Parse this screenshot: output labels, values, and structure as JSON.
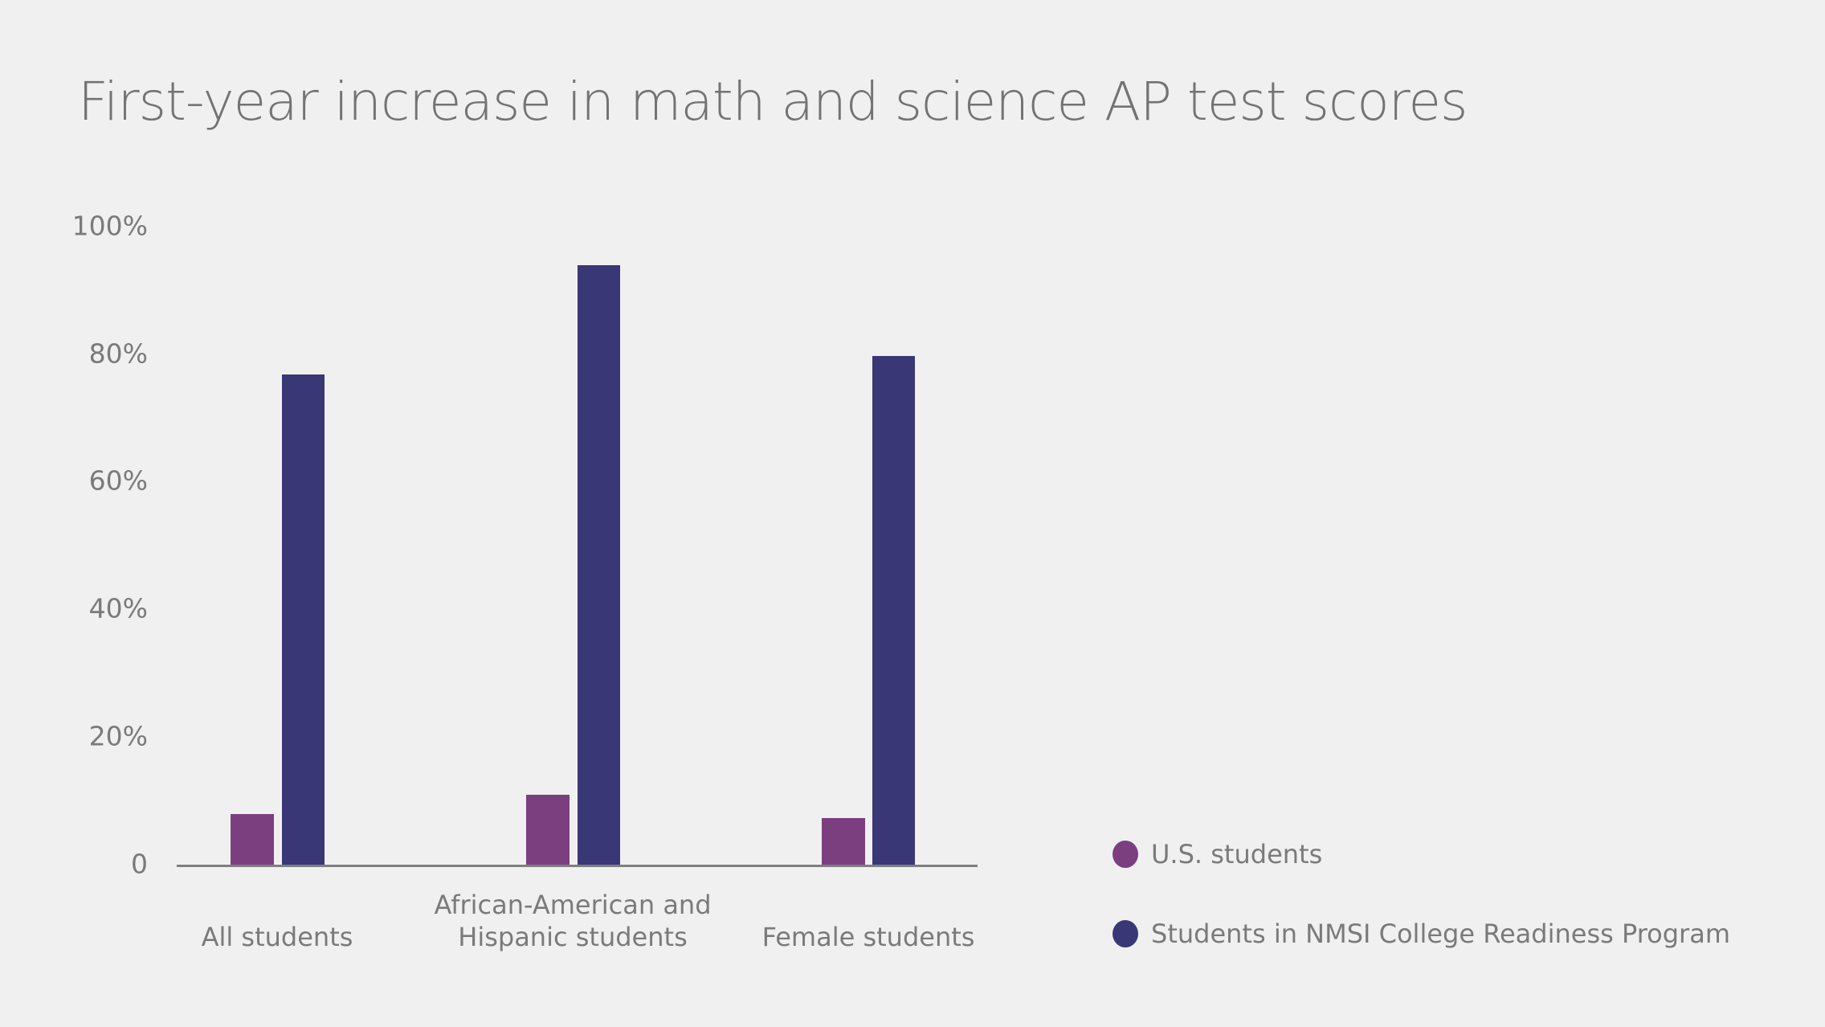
{
  "title": "First-year increase in math and science AP test scores",
  "colors": {
    "us": "#7b3f80",
    "nmsi": "#3a3776",
    "text": "#737373",
    "axis": "#7f7f7f",
    "background": "#f0f0f0"
  },
  "y_ticks": [
    "0",
    "20%",
    "40%",
    "60%",
    "80%",
    "100%"
  ],
  "categories": [
    {
      "line1": "",
      "line2": "All students"
    },
    {
      "line1": "African-American and",
      "line2": "Hispanic students"
    },
    {
      "line1": "",
      "line2": "Female students"
    }
  ],
  "legend": [
    {
      "label": "U.S. students",
      "color": "#7b3f80"
    },
    {
      "label": "Students in NMSI College Readiness Program",
      "color": "#3a3776"
    }
  ],
  "chart_data": {
    "type": "bar",
    "title": "First-year increase in math and science AP test scores",
    "xlabel": "",
    "ylabel": "",
    "categories": [
      "All students",
      "African-American and Hispanic students",
      "Female students"
    ],
    "series": [
      {
        "name": "U.S. students",
        "color": "#7b3f80",
        "values": [
          8,
          11,
          7.4
        ]
      },
      {
        "name": "Students in NMSI College Readiness Program",
        "color": "#3a3776",
        "values": [
          76.7,
          93.8,
          79.6
        ]
      }
    ],
    "ylim": [
      0,
      100
    ],
    "yticks": [
      0,
      20,
      40,
      60,
      80,
      100
    ],
    "ytick_labels": [
      "0",
      "20%",
      "40%",
      "60%",
      "80%",
      "100%"
    ],
    "grid": false,
    "legend_position": "right-bottom"
  }
}
